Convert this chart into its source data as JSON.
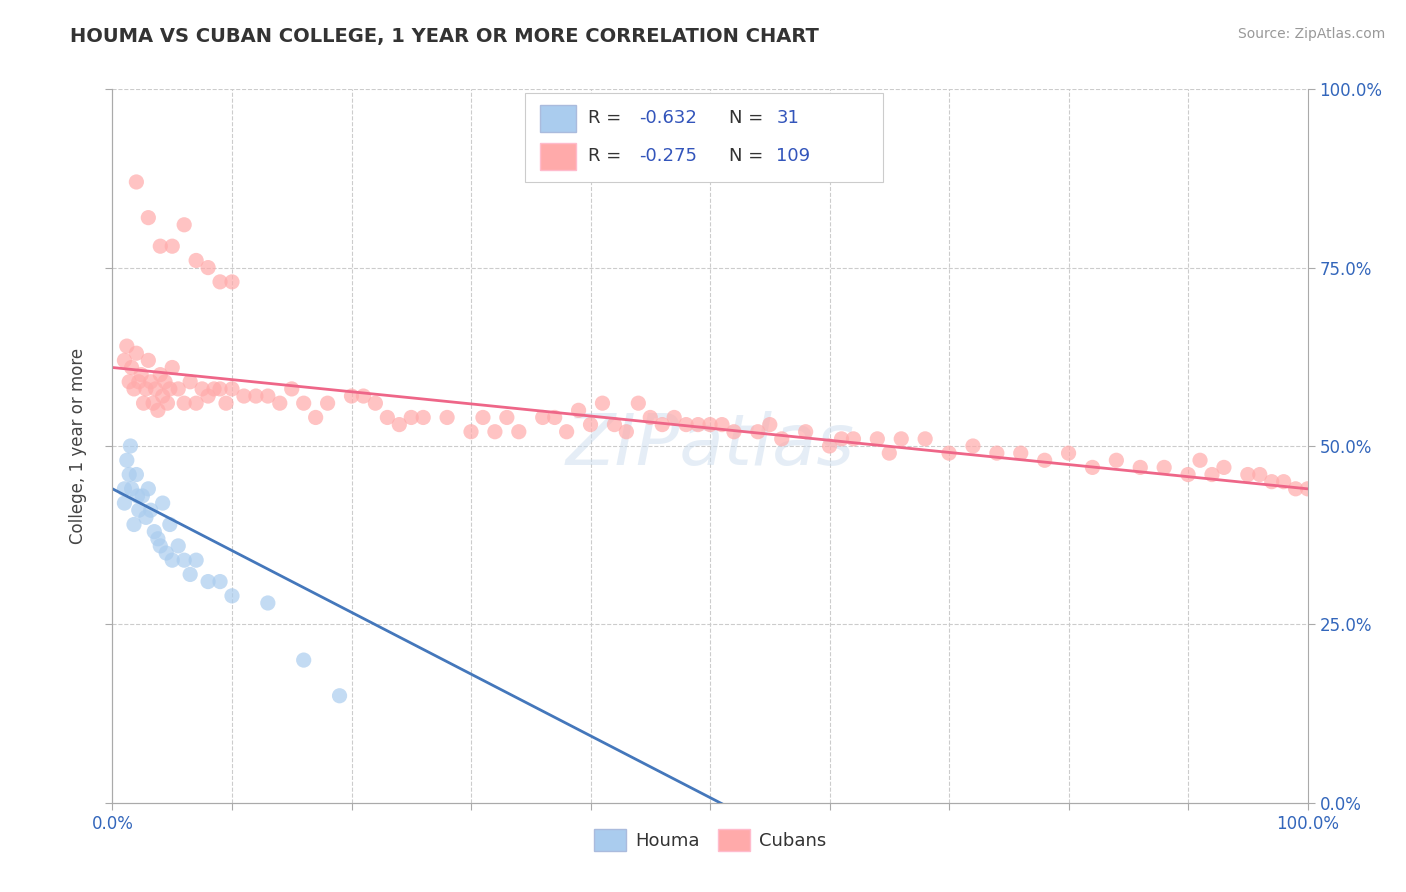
{
  "title": "HOUMA VS CUBAN COLLEGE, 1 YEAR OR MORE CORRELATION CHART",
  "source": "Source: ZipAtlas.com",
  "ylabel": "College, 1 year or more",
  "xlim": [
    0,
    1
  ],
  "ylim": [
    0,
    1
  ],
  "houma_R": -0.632,
  "houma_N": 31,
  "cubans_R": -0.275,
  "cubans_N": 109,
  "houma_color": "#aaccee",
  "houma_line_color": "#4477bb",
  "cubans_color": "#ffaaaa",
  "cubans_line_color": "#ee6688",
  "background_color": "#ffffff",
  "grid_color": "#cccccc",
  "legend_R_color": "#3355bb",
  "watermark_text": "ZIPatlas",
  "houma_x": [
    0.01,
    0.01,
    0.012,
    0.014,
    0.015,
    0.016,
    0.018,
    0.02,
    0.021,
    0.022,
    0.025,
    0.028,
    0.03,
    0.032,
    0.035,
    0.038,
    0.04,
    0.042,
    0.045,
    0.048,
    0.05,
    0.055,
    0.06,
    0.065,
    0.07,
    0.08,
    0.09,
    0.1,
    0.13,
    0.16,
    0.19
  ],
  "houma_y": [
    0.44,
    0.42,
    0.48,
    0.46,
    0.5,
    0.44,
    0.39,
    0.46,
    0.43,
    0.41,
    0.43,
    0.4,
    0.44,
    0.41,
    0.38,
    0.37,
    0.36,
    0.42,
    0.35,
    0.39,
    0.34,
    0.36,
    0.34,
    0.32,
    0.34,
    0.31,
    0.31,
    0.29,
    0.28,
    0.2,
    0.15
  ],
  "houma_trend_x": [
    0.0,
    0.52
  ],
  "houma_trend_y": [
    0.44,
    -0.01
  ],
  "cubans_x": [
    0.01,
    0.012,
    0.014,
    0.016,
    0.018,
    0.02,
    0.022,
    0.024,
    0.026,
    0.028,
    0.03,
    0.032,
    0.034,
    0.036,
    0.038,
    0.04,
    0.042,
    0.044,
    0.046,
    0.048,
    0.05,
    0.055,
    0.06,
    0.065,
    0.07,
    0.075,
    0.08,
    0.085,
    0.09,
    0.095,
    0.1,
    0.11,
    0.12,
    0.13,
    0.14,
    0.15,
    0.16,
    0.17,
    0.18,
    0.2,
    0.21,
    0.22,
    0.23,
    0.24,
    0.25,
    0.26,
    0.28,
    0.3,
    0.31,
    0.32,
    0.33,
    0.34,
    0.36,
    0.37,
    0.38,
    0.39,
    0.4,
    0.41,
    0.42,
    0.43,
    0.44,
    0.45,
    0.46,
    0.47,
    0.48,
    0.49,
    0.5,
    0.51,
    0.52,
    0.54,
    0.55,
    0.56,
    0.58,
    0.6,
    0.61,
    0.62,
    0.64,
    0.65,
    0.66,
    0.68,
    0.7,
    0.72,
    0.74,
    0.76,
    0.78,
    0.8,
    0.82,
    0.84,
    0.86,
    0.88,
    0.9,
    0.91,
    0.92,
    0.93,
    0.95,
    0.96,
    0.97,
    0.98,
    0.99,
    1.0,
    0.02,
    0.03,
    0.04,
    0.05,
    0.06,
    0.07,
    0.08,
    0.09,
    0.1
  ],
  "cubans_y": [
    0.62,
    0.64,
    0.59,
    0.61,
    0.58,
    0.63,
    0.59,
    0.6,
    0.56,
    0.58,
    0.62,
    0.59,
    0.56,
    0.58,
    0.55,
    0.6,
    0.57,
    0.59,
    0.56,
    0.58,
    0.61,
    0.58,
    0.56,
    0.59,
    0.56,
    0.58,
    0.57,
    0.58,
    0.58,
    0.56,
    0.58,
    0.57,
    0.57,
    0.57,
    0.56,
    0.58,
    0.56,
    0.54,
    0.56,
    0.57,
    0.57,
    0.56,
    0.54,
    0.53,
    0.54,
    0.54,
    0.54,
    0.52,
    0.54,
    0.52,
    0.54,
    0.52,
    0.54,
    0.54,
    0.52,
    0.55,
    0.53,
    0.56,
    0.53,
    0.52,
    0.56,
    0.54,
    0.53,
    0.54,
    0.53,
    0.53,
    0.53,
    0.53,
    0.52,
    0.52,
    0.53,
    0.51,
    0.52,
    0.5,
    0.51,
    0.51,
    0.51,
    0.49,
    0.51,
    0.51,
    0.49,
    0.5,
    0.49,
    0.49,
    0.48,
    0.49,
    0.47,
    0.48,
    0.47,
    0.47,
    0.46,
    0.48,
    0.46,
    0.47,
    0.46,
    0.46,
    0.45,
    0.45,
    0.44,
    0.44,
    0.87,
    0.82,
    0.78,
    0.78,
    0.81,
    0.76,
    0.75,
    0.73,
    0.73
  ],
  "cubans_trend_x": [
    0.0,
    1.0
  ],
  "cubans_trend_y": [
    0.61,
    0.44
  ]
}
